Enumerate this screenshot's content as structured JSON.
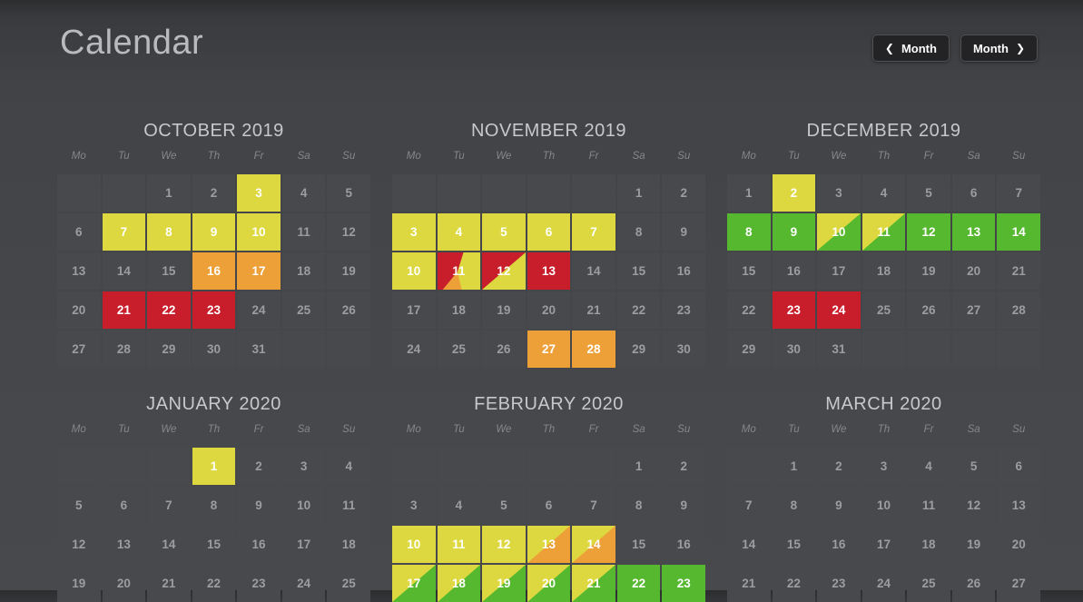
{
  "page": {
    "title": "Calendar"
  },
  "nav": {
    "prev_label": "Month",
    "next_label": "Month",
    "prev_icon": "❮",
    "next_icon": "❯"
  },
  "colors": {
    "yellow": "#ddd83f",
    "orange": "#eca037",
    "red": "#c81e2b",
    "green": "#55b82f",
    "cell_bg": "#47494d",
    "cell_text": "#9b9da0",
    "accent_text": "#ffffff"
  },
  "weekdays": [
    "Mo",
    "Tu",
    "We",
    "Th",
    "Fr",
    "Sa",
    "Su"
  ],
  "months": [
    {
      "title": "OCTOBER 2019",
      "rows": [
        [
          {},
          {},
          {
            "d": "1"
          },
          {
            "d": "2"
          },
          {
            "d": "3",
            "c": "yellow"
          },
          {
            "d": "4"
          },
          {
            "d": "5"
          }
        ],
        [
          {
            "d": "6"
          },
          {
            "d": "7",
            "c": "yellow"
          },
          {
            "d": "8",
            "c": "yellow"
          },
          {
            "d": "9",
            "c": "yellow"
          },
          {
            "d": "10",
            "c": "yellow"
          },
          {
            "d": "11"
          },
          {
            "d": "12"
          }
        ],
        [
          {
            "d": "13"
          },
          {
            "d": "14"
          },
          {
            "d": "15"
          },
          {
            "d": "16",
            "c": "orange"
          },
          {
            "d": "17",
            "c": "orange"
          },
          {
            "d": "18"
          },
          {
            "d": "19"
          }
        ],
        [
          {
            "d": "20"
          },
          {
            "d": "21",
            "c": "red"
          },
          {
            "d": "22",
            "c": "red"
          },
          {
            "d": "23",
            "c": "red"
          },
          {
            "d": "24"
          },
          {
            "d": "25"
          },
          {
            "d": "26"
          }
        ],
        [
          {
            "d": "27"
          },
          {
            "d": "28"
          },
          {
            "d": "29"
          },
          {
            "d": "30"
          },
          {
            "d": "31"
          },
          {},
          {}
        ]
      ]
    },
    {
      "title": "NOVEMBER 2019",
      "rows": [
        [
          {},
          {},
          {},
          {},
          {},
          {
            "d": "1"
          },
          {
            "d": "2"
          }
        ],
        [
          {
            "d": "3",
            "c": "yellow"
          },
          {
            "d": "4",
            "c": "yellow"
          },
          {
            "d": "5",
            "c": "yellow"
          },
          {
            "d": "6",
            "c": "yellow"
          },
          {
            "d": "7",
            "c": "yellow"
          },
          {
            "d": "8"
          },
          {
            "d": "9"
          }
        ],
        [
          {
            "d": "10",
            "c": "yellow"
          },
          {
            "d": "11",
            "c": "red+yellow+orange"
          },
          {
            "d": "12",
            "c": "red/yellow"
          },
          {
            "d": "13",
            "c": "red"
          },
          {
            "d": "14"
          },
          {
            "d": "15"
          },
          {
            "d": "16"
          }
        ],
        [
          {
            "d": "17"
          },
          {
            "d": "18"
          },
          {
            "d": "19"
          },
          {
            "d": "20"
          },
          {
            "d": "21"
          },
          {
            "d": "22"
          },
          {
            "d": "23"
          }
        ],
        [
          {
            "d": "24"
          },
          {
            "d": "25"
          },
          {
            "d": "26"
          },
          {
            "d": "27",
            "c": "orange"
          },
          {
            "d": "28",
            "c": "orange"
          },
          {
            "d": "29"
          },
          {
            "d": "30"
          }
        ]
      ]
    },
    {
      "title": "DECEMBER 2019",
      "rows": [
        [
          {
            "d": "1"
          },
          {
            "d": "2",
            "c": "yellow"
          },
          {
            "d": "3"
          },
          {
            "d": "4"
          },
          {
            "d": "5"
          },
          {
            "d": "6"
          },
          {
            "d": "7"
          }
        ],
        [
          {
            "d": "8",
            "c": "green"
          },
          {
            "d": "9",
            "c": "green"
          },
          {
            "d": "10",
            "c": "yellow/green"
          },
          {
            "d": "11",
            "c": "yellow/green"
          },
          {
            "d": "12",
            "c": "green"
          },
          {
            "d": "13",
            "c": "green"
          },
          {
            "d": "14",
            "c": "green"
          }
        ],
        [
          {
            "d": "15"
          },
          {
            "d": "16"
          },
          {
            "d": "17"
          },
          {
            "d": "18"
          },
          {
            "d": "19"
          },
          {
            "d": "20"
          },
          {
            "d": "21"
          }
        ],
        [
          {
            "d": "22"
          },
          {
            "d": "23",
            "c": "red"
          },
          {
            "d": "24",
            "c": "red"
          },
          {
            "d": "25"
          },
          {
            "d": "26"
          },
          {
            "d": "27"
          },
          {
            "d": "28"
          }
        ],
        [
          {
            "d": "29"
          },
          {
            "d": "30"
          },
          {
            "d": "31"
          },
          {},
          {},
          {},
          {}
        ]
      ]
    },
    {
      "title": "JANUARY 2020",
      "rows": [
        [
          {},
          {},
          {},
          {
            "d": "1",
            "c": "yellow"
          },
          {
            "d": "2"
          },
          {
            "d": "3"
          },
          {
            "d": "4"
          }
        ],
        [
          {
            "d": "5"
          },
          {
            "d": "6"
          },
          {
            "d": "7"
          },
          {
            "d": "8"
          },
          {
            "d": "9"
          },
          {
            "d": "10"
          },
          {
            "d": "11"
          }
        ],
        [
          {
            "d": "12"
          },
          {
            "d": "13"
          },
          {
            "d": "14"
          },
          {
            "d": "15"
          },
          {
            "d": "16"
          },
          {
            "d": "17"
          },
          {
            "d": "18"
          }
        ],
        [
          {
            "d": "19"
          },
          {
            "d": "20"
          },
          {
            "d": "21"
          },
          {
            "d": "22"
          },
          {
            "d": "23"
          },
          {
            "d": "24"
          },
          {
            "d": "25"
          }
        ]
      ]
    },
    {
      "title": "FEBRUARY 2020",
      "rows": [
        [
          {},
          {},
          {},
          {},
          {},
          {
            "d": "1"
          },
          {
            "d": "2"
          }
        ],
        [
          {
            "d": "3"
          },
          {
            "d": "4"
          },
          {
            "d": "5"
          },
          {
            "d": "6"
          },
          {
            "d": "7"
          },
          {
            "d": "8"
          },
          {
            "d": "9"
          }
        ],
        [
          {
            "d": "10",
            "c": "yellow"
          },
          {
            "d": "11",
            "c": "yellow"
          },
          {
            "d": "12",
            "c": "yellow"
          },
          {
            "d": "13",
            "c": "yellow/orange"
          },
          {
            "d": "14",
            "c": "yellow/orange"
          },
          {
            "d": "15"
          },
          {
            "d": "16"
          }
        ],
        [
          {
            "d": "17",
            "c": "yellow/green"
          },
          {
            "d": "18",
            "c": "yellow/green"
          },
          {
            "d": "19",
            "c": "yellow/green"
          },
          {
            "d": "20",
            "c": "yellow/green"
          },
          {
            "d": "21",
            "c": "yellow/green"
          },
          {
            "d": "22",
            "c": "green"
          },
          {
            "d": "23",
            "c": "green"
          }
        ]
      ]
    },
    {
      "title": "MARCH 2020",
      "rows": [
        [
          {},
          {
            "d": "1"
          },
          {
            "d": "2"
          },
          {
            "d": "3"
          },
          {
            "d": "4"
          },
          {
            "d": "5"
          },
          {
            "d": "6"
          }
        ],
        [
          {
            "d": "7"
          },
          {
            "d": "8"
          },
          {
            "d": "9"
          },
          {
            "d": "10"
          },
          {
            "d": "11"
          },
          {
            "d": "12"
          },
          {
            "d": "13"
          }
        ],
        [
          {
            "d": "14"
          },
          {
            "d": "15"
          },
          {
            "d": "16"
          },
          {
            "d": "17"
          },
          {
            "d": "18"
          },
          {
            "d": "19"
          },
          {
            "d": "20"
          }
        ],
        [
          {
            "d": "21"
          },
          {
            "d": "22"
          },
          {
            "d": "23"
          },
          {
            "d": "24"
          },
          {
            "d": "25"
          },
          {
            "d": "26"
          },
          {
            "d": "27"
          }
        ]
      ]
    }
  ]
}
